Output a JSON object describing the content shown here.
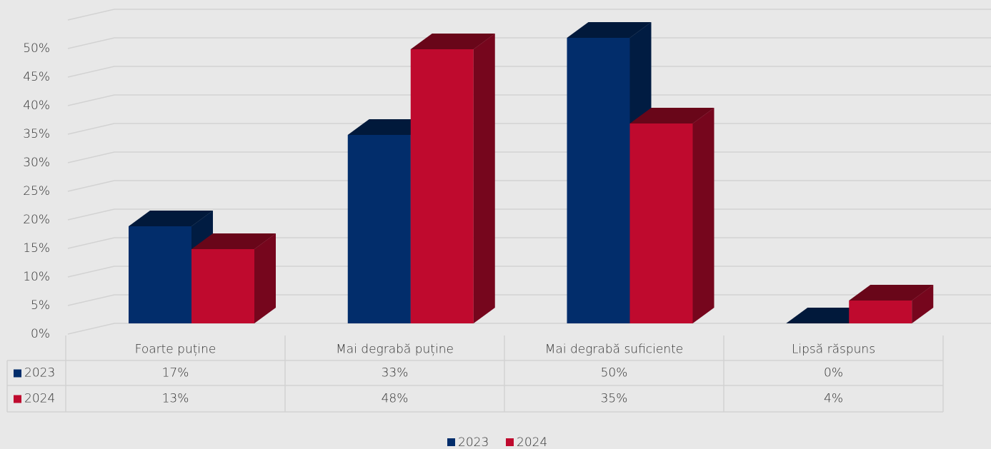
{
  "chart_data": {
    "type": "bar3d",
    "categories": [
      "Foarte puține",
      "Mai degrabă puține",
      "Mai degrabă suficiente",
      "Lipsă răspuns"
    ],
    "series": [
      {
        "name": "2023",
        "color": "#022d6b",
        "values": [
          17,
          33,
          50,
          0
        ],
        "value_labels": [
          "17%",
          "33%",
          "50%",
          "0%"
        ]
      },
      {
        "name": "2024",
        "color": "#bf0a2e",
        "values": [
          13,
          48,
          35,
          4
        ],
        "value_labels": [
          "13%",
          "48%",
          "35%",
          "4%"
        ]
      }
    ],
    "ylim": [
      0,
      55
    ],
    "yticks": [
      {
        "value": 0,
        "label": "0%"
      },
      {
        "value": 5,
        "label": "5%"
      },
      {
        "value": 10,
        "label": "10%"
      },
      {
        "value": 15,
        "label": "15%"
      },
      {
        "value": 20,
        "label": "20%"
      },
      {
        "value": 25,
        "label": "25%"
      },
      {
        "value": 30,
        "label": "30%"
      },
      {
        "value": 35,
        "label": "35%"
      },
      {
        "value": 40,
        "label": "40%"
      },
      {
        "value": 45,
        "label": "45%"
      },
      {
        "value": 50,
        "label": "50%"
      }
    ],
    "grid": true,
    "legend": "bottom",
    "data_table": true
  }
}
